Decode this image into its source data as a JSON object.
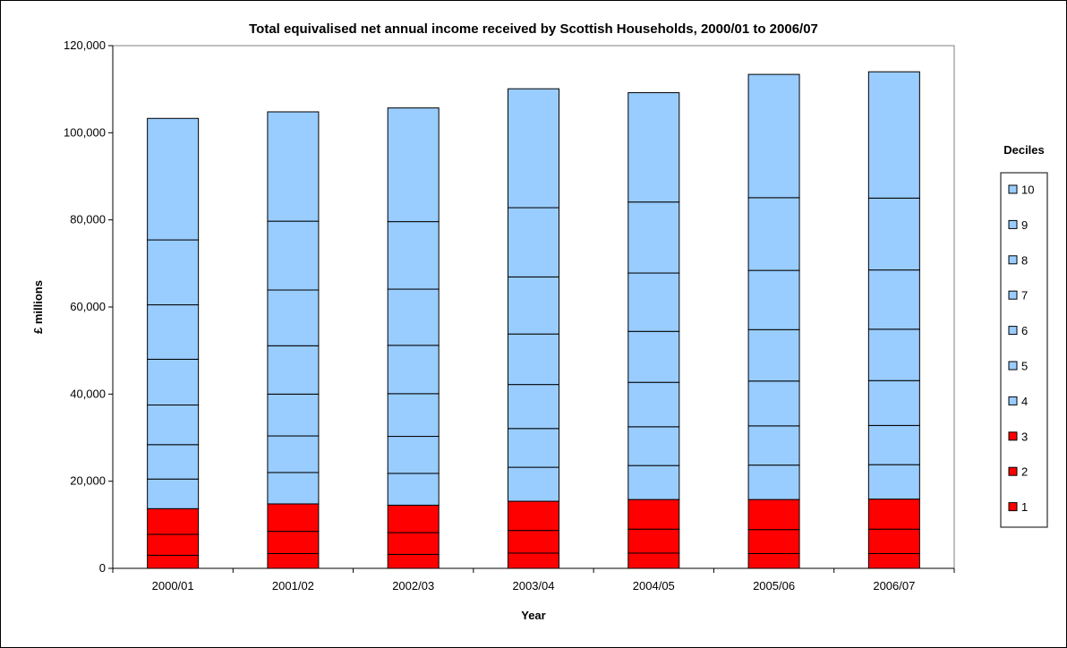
{
  "chart_data": {
    "type": "bar",
    "stacked": true,
    "title": "Total equivalised net annual income received by Scottish Households, 2000/01 to 2006/07",
    "xlabel": "Year",
    "ylabel": "£ millions",
    "ylim": [
      0,
      120000
    ],
    "yticks": [
      0,
      20000,
      40000,
      60000,
      80000,
      100000,
      120000
    ],
    "ytick_labels": [
      "0",
      "20,000",
      "40,000",
      "60,000",
      "80,000",
      "100,000",
      "120,000"
    ],
    "categories": [
      "2000/01",
      "2001/02",
      "2002/03",
      "2003/04",
      "2004/05",
      "2005/06",
      "2006/07"
    ],
    "legend_title": "Deciles",
    "legend_position": "right",
    "grid": false,
    "series": [
      {
        "name": "1",
        "color": "#ff0000",
        "values": [
          3000,
          3400,
          3200,
          3500,
          3500,
          3400,
          3400
        ]
      },
      {
        "name": "2",
        "color": "#ff0000",
        "values": [
          4800,
          5100,
          5000,
          5200,
          5500,
          5500,
          5600
        ]
      },
      {
        "name": "3",
        "color": "#ff0000",
        "values": [
          5900,
          6300,
          6300,
          6700,
          6800,
          6900,
          6900
        ]
      },
      {
        "name": "4",
        "color": "#99ccff",
        "values": [
          6800,
          7200,
          7300,
          7800,
          7800,
          7900,
          7900
        ]
      },
      {
        "name": "5",
        "color": "#99ccff",
        "values": [
          7900,
          8400,
          8500,
          8900,
          8900,
          9000,
          9000
        ]
      },
      {
        "name": "6",
        "color": "#99ccff",
        "values": [
          9100,
          9600,
          9800,
          10100,
          10200,
          10300,
          10300
        ]
      },
      {
        "name": "7",
        "color": "#99ccff",
        "values": [
          10500,
          11100,
          11100,
          11600,
          11700,
          11800,
          11800
        ]
      },
      {
        "name": "8",
        "color": "#99ccff",
        "values": [
          12500,
          12800,
          12900,
          13100,
          13400,
          13600,
          13600
        ]
      },
      {
        "name": "9",
        "color": "#99ccff",
        "values": [
          14900,
          15800,
          15500,
          15900,
          16300,
          16700,
          16500
        ]
      },
      {
        "name": "10",
        "color": "#99ccff",
        "values": [
          27900,
          25100,
          26100,
          27300,
          25100,
          28300,
          29000
        ]
      }
    ]
  }
}
